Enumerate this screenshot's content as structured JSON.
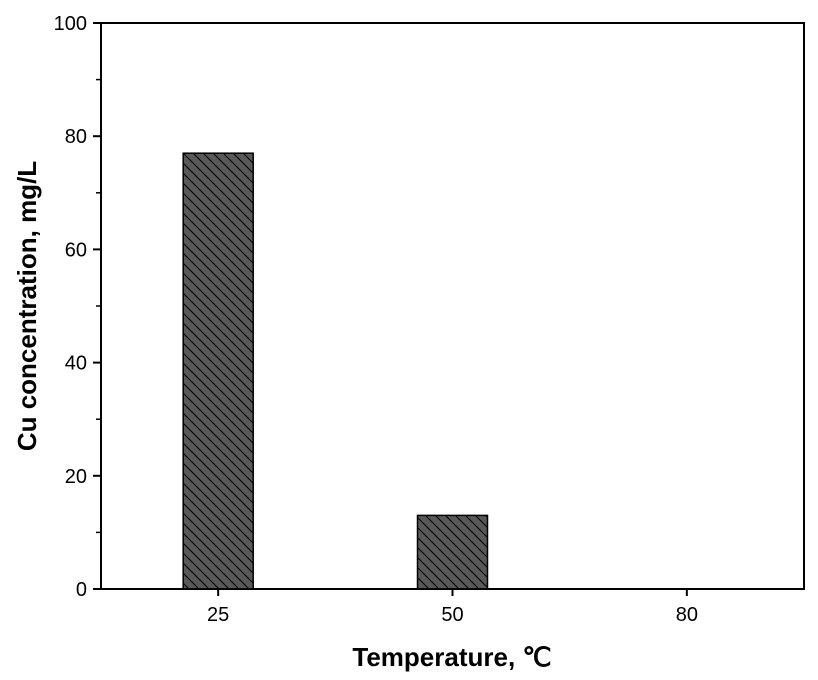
{
  "chart_data": {
    "type": "bar",
    "title": "",
    "xlabel": "Temperature, ℃",
    "ylabel": "Cu concentration, mg/L",
    "categories": [
      "25",
      "50",
      "80"
    ],
    "values": [
      77,
      13,
      0
    ],
    "ylim": [
      0,
      100
    ],
    "yticks": [
      "0",
      "20",
      "40",
      "60",
      "80",
      "100"
    ],
    "grid": false,
    "legend": "none",
    "bar_fill": "#595959",
    "bar_pattern": "diagonal-hatch",
    "hatch_color": "#000000",
    "axis_color": "#000000"
  }
}
